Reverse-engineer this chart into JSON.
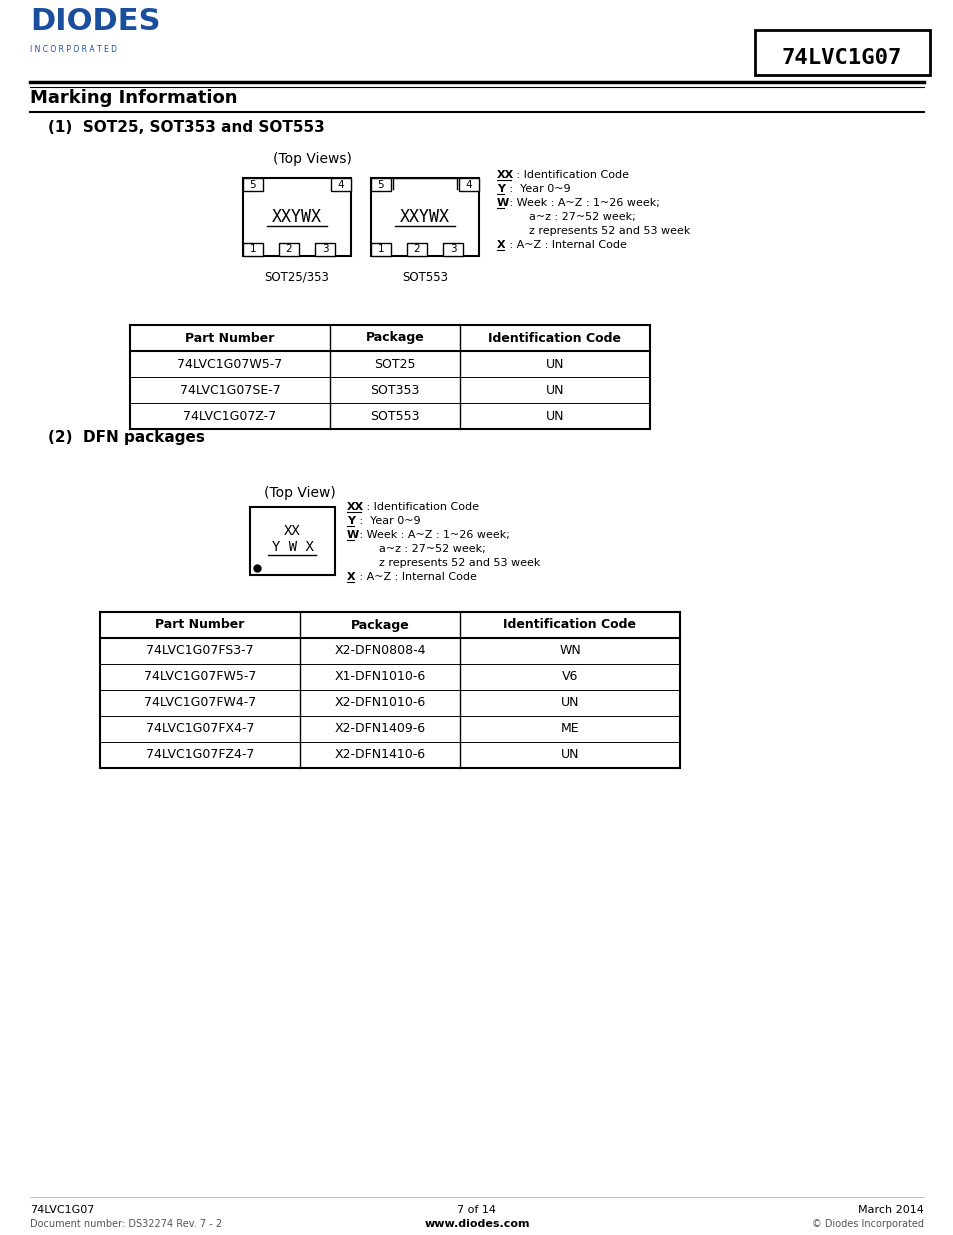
{
  "title_model": "74LVC1G07",
  "section_title": "Marking Information",
  "subsection1": "(1)  SOT25, SOT353 and SOT553",
  "subsection2": "(2)  DFN packages",
  "top_views_label": "(Top Views)",
  "top_view_label": "(Top View)",
  "sot_label1": "SOT25/353",
  "sot_label2": "SOT553",
  "chip_text": "XXYWX",
  "table1_headers": [
    "Part Number",
    "Package",
    "Identification Code"
  ],
  "table1_rows": [
    [
      "74LVC1G07W5-7",
      "SOT25",
      "UN"
    ],
    [
      "74LVC1G07SE-7",
      "SOT353",
      "UN"
    ],
    [
      "74LVC1G07Z-7",
      "SOT553",
      "UN"
    ]
  ],
  "table2_headers": [
    "Part Number",
    "Package",
    "Identification Code"
  ],
  "table2_rows": [
    [
      "74LVC1G07FS3-7",
      "X2-DFN0808-4",
      "WN"
    ],
    [
      "74LVC1G07FW5-7",
      "X1-DFN1010-6",
      "V6"
    ],
    [
      "74LVC1G07FW4-7",
      "X2-DFN1010-6",
      "UN"
    ],
    [
      "74LVC1G07FX4-7",
      "X2-DFN1409-6",
      "ME"
    ],
    [
      "74LVC1G07FZ4-7",
      "X2-DFN1410-6",
      "UN"
    ]
  ],
  "footer_left1": "74LVC1G07",
  "footer_left2": "Document number: DS32274 Rev. 7 - 2",
  "footer_center1": "7 of 14",
  "footer_center2": "www.diodes.com",
  "footer_right1": "March 2014",
  "footer_right2": "© Diodes Incorporated",
  "diodes_blue": "#1a4f9e",
  "incorporated_text": "I N C O R P O R A T E D",
  "text_color": "#000000"
}
